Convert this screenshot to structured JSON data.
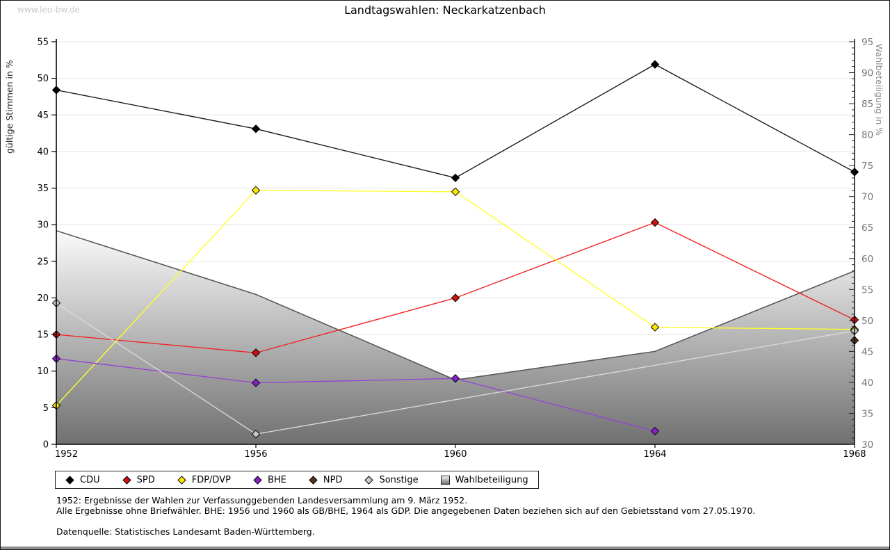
{
  "watermark": "www.leo-bw.de",
  "header": {
    "title": "Landtagswahlen: Neckarkatzenbach"
  },
  "chart_data": {
    "type": "line",
    "title": "Landtagswahlen: Neckarkatzenbach",
    "x_categories": [
      "1952",
      "1956",
      "1960",
      "1964",
      "1968"
    ],
    "grid": true,
    "legend_position": "bottom",
    "left_axis": {
      "label": "gültige Stimmen in %",
      "min": 0,
      "max": 55,
      "tick_step": 5
    },
    "right_axis": {
      "label": "Wahlbeteiligung in %",
      "min": 30,
      "max": 95,
      "tick_step": 5,
      "minor_tick_step": 1
    },
    "series": [
      {
        "name": "CDU",
        "axis": "left",
        "line_color": "#1c1c1c",
        "marker_color": "#000000",
        "points": {
          "1952": 48.4,
          "1956": 43.1,
          "1960": 36.4,
          "1964": 51.9,
          "1968": 37.2
        }
      },
      {
        "name": "SPD",
        "axis": "left",
        "line_color": "#f22424",
        "marker_color": "#cc1111",
        "points": {
          "1952": 15.0,
          "1956": 12.5,
          "1960": 20.0,
          "1964": 30.3,
          "1968": 17.0
        }
      },
      {
        "name": "FDP/DVP",
        "axis": "left",
        "line_color": "#ffff2a",
        "marker_color": "#ffe800",
        "points": {
          "1952": 5.3,
          "1956": 34.7,
          "1960": 34.5,
          "1964": 16.0,
          "1968": 15.7
        }
      },
      {
        "name": "BHE",
        "axis": "left",
        "line_color": "#9448d2",
        "marker_color": "#8a20c8",
        "points": {
          "1952": 11.7,
          "1956": 8.4,
          "1960": 9.0,
          "1964": 1.8
        }
      },
      {
        "name": "NPD",
        "axis": "left",
        "line_color": "#54331f",
        "marker_color": "#54331f",
        "points": {
          "1968": 14.2
        }
      },
      {
        "name": "Sonstige",
        "axis": "left",
        "line_color": "#d9d9d9",
        "marker_color": "#c9c9c9",
        "points": {
          "1952": 19.3,
          "1956": 1.4,
          "1968": 15.5
        }
      }
    ],
    "area": {
      "name": "Wahlbeteiligung",
      "axis": "right",
      "fill_top": "#fbfbfb",
      "fill_bottom": "#707070",
      "edge_color": "#5a5a5a",
      "points": {
        "1952": 64.5,
        "1956": 54.2,
        "1960": 40.4,
        "1964": 45.0,
        "1968": 58.0
      }
    }
  },
  "legend": {
    "items": [
      {
        "label": "CDU",
        "marker": "diamond",
        "color": "#000000"
      },
      {
        "label": "SPD",
        "marker": "diamond",
        "color": "#cc1111"
      },
      {
        "label": "FDP/DVP",
        "marker": "diamond",
        "color": "#ffe800"
      },
      {
        "label": "BHE",
        "marker": "diamond",
        "color": "#8a20c8"
      },
      {
        "label": "NPD",
        "marker": "diamond",
        "color": "#54331f"
      },
      {
        "label": "Sonstige",
        "marker": "diamond",
        "color": "#c9c9c9"
      },
      {
        "label": "Wahlbeteiligung",
        "marker": "square-gradient",
        "color": "#9a9a9a"
      }
    ]
  },
  "footnotes": {
    "line1": "1952: Ergebnisse der Wahlen zur Verfassunggebenden Landesversammlung am 9. März 1952.",
    "line2": "Alle Ergebnisse ohne Briefwähler. BHE: 1956 und 1960 als GB/BHE, 1964 als GDP. Die angegebenen Daten beziehen sich auf den Gebietsstand vom 27.05.1970.",
    "source": "Datenquelle: Statistisches Landesamt Baden-Württemberg."
  }
}
